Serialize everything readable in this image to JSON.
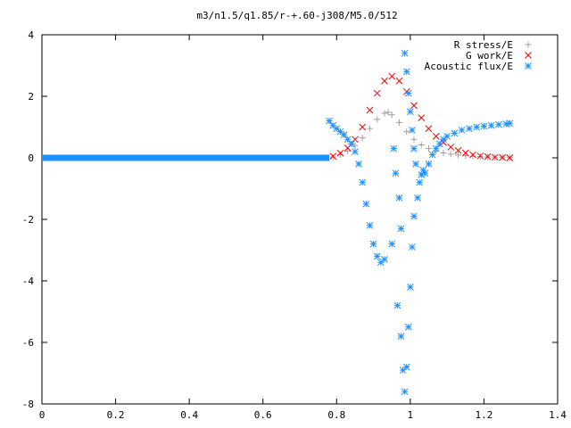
{
  "chart_data": {
    "type": "scatter",
    "title": "m3/n1.5/q1.85/r-+.60-j308/M5.0/512",
    "xlabel": "",
    "ylabel": "",
    "xlim": [
      0,
      1.4
    ],
    "ylim": [
      -8,
      4
    ],
    "xticks": [
      "0",
      "0.2",
      "0.4",
      "0.6",
      "0.8",
      "1",
      "1.2",
      "1.4"
    ],
    "yticks": [
      "4",
      "2",
      "0",
      "-2",
      "-4",
      "-6",
      "-8"
    ],
    "legend_position": "top-right",
    "grid": false,
    "series": [
      {
        "name": "R stress/E",
        "marker": "plus",
        "color": "#a0a0a0",
        "x": [
          0.77,
          0.79,
          0.81,
          0.83,
          0.85,
          0.87,
          0.89,
          0.91,
          0.93,
          0.94,
          0.95,
          0.97,
          0.99,
          1.01,
          1.03,
          1.05,
          1.07,
          1.09,
          1.11,
          1.13,
          1.15,
          1.17,
          1.19,
          1.21,
          1.23,
          1.25,
          1.27
        ],
        "y": [
          0.0,
          0.03,
          0.1,
          0.22,
          0.4,
          0.65,
          0.95,
          1.25,
          1.45,
          1.48,
          1.4,
          1.15,
          0.85,
          0.6,
          0.42,
          0.3,
          0.22,
          0.16,
          0.12,
          0.09,
          0.07,
          0.05,
          0.04,
          0.03,
          0.02,
          0.02,
          0.01
        ]
      },
      {
        "name": "G work/E",
        "marker": "cross",
        "color": "#ff0000",
        "x": [
          0.77,
          0.79,
          0.81,
          0.83,
          0.85,
          0.87,
          0.89,
          0.91,
          0.93,
          0.95,
          0.97,
          0.99,
          1.01,
          1.03,
          1.05,
          1.07,
          1.09,
          1.11,
          1.13,
          1.15,
          1.17,
          1.19,
          1.21,
          1.23,
          1.25,
          1.27
        ],
        "y": [
          0.0,
          0.05,
          0.15,
          0.32,
          0.6,
          1.0,
          1.55,
          2.1,
          2.5,
          2.65,
          2.5,
          2.15,
          1.7,
          1.3,
          0.95,
          0.7,
          0.5,
          0.35,
          0.24,
          0.16,
          0.1,
          0.06,
          0.04,
          0.02,
          0.01,
          0.0
        ]
      },
      {
        "name": "Acoustic flux/E",
        "marker": "star",
        "color": "#1e90ff",
        "x": [
          0.78,
          0.79,
          0.8,
          0.81,
          0.82,
          0.83,
          0.84,
          0.85,
          0.86,
          0.87,
          0.88,
          0.89,
          0.9,
          0.91,
          0.92,
          0.93,
          0.95,
          0.965,
          0.975,
          0.98,
          0.985,
          0.99,
          0.995,
          1.0,
          1.005,
          1.01,
          1.02,
          1.025,
          1.03,
          1.035,
          1.04,
          1.05,
          1.06,
          1.07,
          1.08,
          1.09,
          1.1,
          1.12,
          1.14,
          1.16,
          1.18,
          1.2,
          1.22,
          1.24,
          1.26,
          1.27,
          0.955,
          0.96,
          0.97,
          0.975,
          0.985,
          0.99,
          0.995,
          1.0,
          1.005,
          1.01,
          1.015
        ],
        "y": [
          1.2,
          1.05,
          0.95,
          0.85,
          0.75,
          0.6,
          0.45,
          0.2,
          -0.2,
          -0.8,
          -1.5,
          -2.2,
          -2.8,
          -3.2,
          -3.4,
          -3.3,
          -2.8,
          -4.8,
          -5.8,
          -6.9,
          -7.6,
          -6.8,
          -5.5,
          -4.2,
          -2.9,
          -1.9,
          -1.3,
          -0.8,
          -0.55,
          -0.4,
          -0.5,
          -0.2,
          0.1,
          0.3,
          0.45,
          0.6,
          0.7,
          0.8,
          0.9,
          0.95,
          1.0,
          1.03,
          1.05,
          1.08,
          1.1,
          1.12,
          0.3,
          -0.5,
          -1.3,
          -2.3,
          3.4,
          2.8,
          2.1,
          1.5,
          0.9,
          0.3,
          -0.2
        ]
      },
      {
        "name": "",
        "marker": "star",
        "color": "#1e90ff",
        "role": "flat-line",
        "x": [
          0.0,
          0.78
        ],
        "y": [
          0.0,
          0.0
        ]
      }
    ]
  }
}
